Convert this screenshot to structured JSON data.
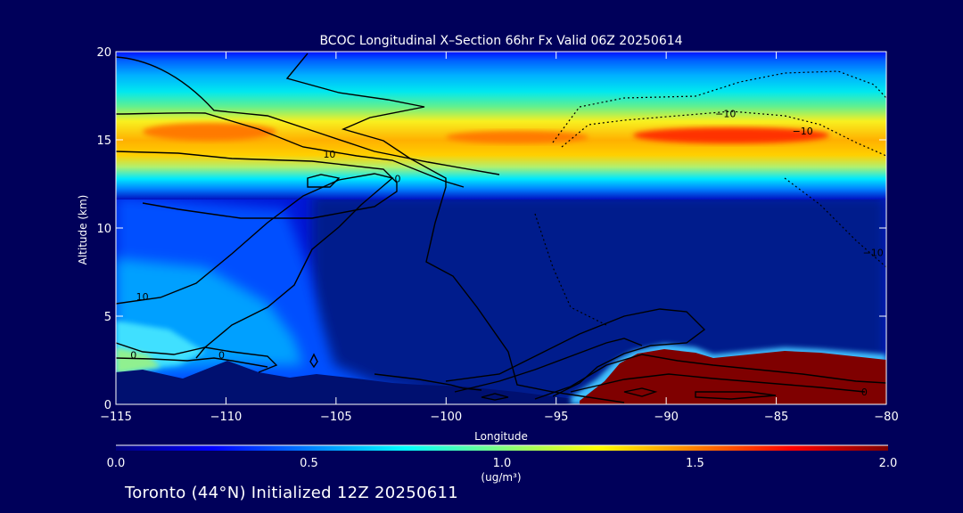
{
  "chart_data": {
    "type": "heatmap",
    "title": "BCOC Longitudinal X–Section 66hr  Fx Valid 06Z 20250614",
    "xlabel": "Longitude",
    "ylabel": "Altitude (km)",
    "xlim": [
      -115,
      -80
    ],
    "ylim": [
      0,
      20
    ],
    "x_ticks": [
      -115,
      -110,
      -105,
      -100,
      -95,
      -90,
      -85,
      -80
    ],
    "x_tick_labels": [
      "−115",
      "−110",
      "−105",
      "−100",
      "−95",
      "−90",
      "−85",
      "−80"
    ],
    "y_ticks": [
      0,
      5,
      10,
      15,
      20
    ],
    "y_tick_labels": [
      "0",
      "5",
      "10",
      "15",
      "20"
    ],
    "colorbar": {
      "min": 0.0,
      "max": 2.0,
      "ticks": [
        0.0,
        0.5,
        1.0,
        1.5,
        2.0
      ],
      "tick_labels": [
        "0.0",
        "0.5",
        "1.0",
        "1.5",
        "2.0"
      ],
      "units": "(ug/m³)",
      "colormap": [
        "#00007f",
        "#0000ff",
        "#007fff",
        "#00ffff",
        "#7fff7f",
        "#ffff00",
        "#ff7f00",
        "#ff0000",
        "#7f0000"
      ],
      "placement": "bottom"
    },
    "fields": {
      "upper_band": [
        {
          "lon": -115,
          "alt": 15.6,
          "value": 1.15
        },
        {
          "lon": -112,
          "alt": 15.4,
          "value": 1.5
        },
        {
          "lon": -108,
          "alt": 15.3,
          "value": 1.3
        },
        {
          "lon": -102,
          "alt": 15.2,
          "value": 1.35
        },
        {
          "lon": -96,
          "alt": 15.1,
          "value": 1.4
        },
        {
          "lon": -92,
          "alt": 15.1,
          "value": 1.55
        },
        {
          "lon": -87,
          "alt": 15.1,
          "value": 1.75
        },
        {
          "lon": -82,
          "alt": 15.0,
          "value": 1.4
        },
        {
          "lon": -80,
          "alt": 15.0,
          "value": 1.3
        }
      ],
      "lower_plume": [
        {
          "lon": -93,
          "alt": 1.0,
          "value": 2.0
        },
        {
          "lon": -91,
          "alt": 2.0,
          "value": 2.0
        },
        {
          "lon": -88,
          "alt": 2.5,
          "value": 2.0
        },
        {
          "lon": -84,
          "alt": 2.5,
          "value": 2.0
        },
        {
          "lon": -80,
          "alt": 2.0,
          "value": 2.0
        }
      ],
      "west_lower": [
        {
          "lon": -115,
          "alt": 2.5,
          "value": 0.85
        },
        {
          "lon": -112,
          "alt": 3.5,
          "value": 0.65
        },
        {
          "lon": -108,
          "alt": 5.0,
          "value": 0.45
        },
        {
          "lon": -105,
          "alt": 2.0,
          "value": 0.35
        },
        {
          "lon": -100,
          "alt": 1.0,
          "value": 0.2
        }
      ]
    },
    "contour_labels": [
      {
        "text": "10",
        "lon": -105.3,
        "alt": 14.0
      },
      {
        "text": "−10",
        "lon": -87.3,
        "alt": 16.3
      },
      {
        "text": "−10",
        "lon": -83.8,
        "alt": 15.3
      },
      {
        "text": "−10",
        "lon": -80.6,
        "alt": 8.4
      },
      {
        "text": "10",
        "lon": -113.8,
        "alt": 5.9
      },
      {
        "text": "0",
        "lon": -114.2,
        "alt": 2.6
      },
      {
        "text": "0",
        "lon": -110.2,
        "alt": 2.6
      },
      {
        "text": "0",
        "lon": -102.2,
        "alt": 12.6
      },
      {
        "text": "0",
        "lon": -81.0,
        "alt": 0.5
      }
    ]
  },
  "footer": "Toronto (44°N) Initialized 12Z 20250611"
}
